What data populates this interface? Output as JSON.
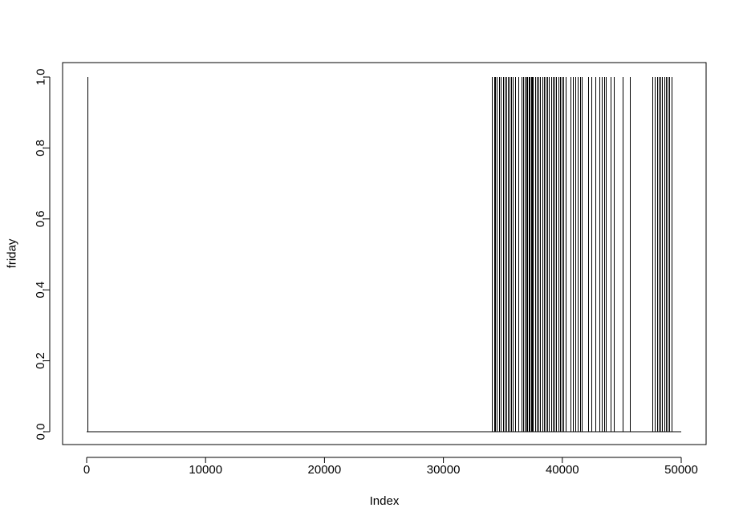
{
  "chart_data": {
    "type": "line",
    "title": "",
    "xlabel": "Index",
    "ylabel": "friday",
    "xlim": [
      0,
      50000
    ],
    "ylim": [
      0,
      1
    ],
    "x_ticks": [
      "0",
      "10000",
      "20000",
      "30000",
      "40000",
      "50000"
    ],
    "y_ticks": [
      "0.0",
      "0.2",
      "0.4",
      "0.6",
      "0.8",
      "1.0"
    ],
    "grid": false,
    "baseline": {
      "x_start": 1,
      "x_end": 50000,
      "y": 0
    },
    "series": [
      {
        "values_at_x": 1,
        "x": [
          100,
          34100,
          34250,
          34350,
          34500,
          34650,
          34800,
          35000,
          35150,
          35300,
          35400,
          35550,
          35700,
          35850,
          36000,
          36300,
          36550,
          36700,
          36850,
          36950,
          37050,
          37150,
          37250,
          37350,
          37450,
          37550,
          37700,
          37850,
          38000,
          38150,
          38300,
          38450,
          38600,
          38750,
          38900,
          39050,
          39200,
          39350,
          39500,
          39650,
          39800,
          39950,
          40100,
          40300,
          40700,
          40900,
          41100,
          41300,
          41500,
          41650,
          42150,
          42450,
          42750,
          43100,
          43350,
          43500,
          43650,
          44050,
          44300,
          45050,
          45700,
          47600,
          47800,
          47950,
          48100,
          48250,
          48400,
          48550,
          48700,
          48850,
          49000,
          49200
        ]
      }
    ]
  }
}
